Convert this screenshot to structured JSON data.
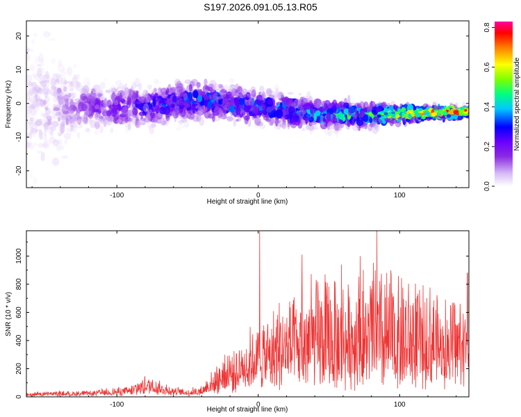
{
  "title": "S197.2026.091.05.13.R05",
  "chart_data": [
    {
      "type": "heatmap",
      "name": "spectrogram",
      "xlabel": "Height of straight line (km)",
      "ylabel": "Frequency (Hz)",
      "xlim": [
        -164,
        149
      ],
      "ylim": [
        -25,
        24.5
      ],
      "xticks": [
        -100,
        0,
        100
      ],
      "xtick_labels": [
        "-100",
        "0",
        "100"
      ],
      "yticks": [
        -20,
        -10,
        0,
        10,
        20
      ],
      "ytick_labels": [
        "-20",
        "-10",
        "0",
        "10",
        "20"
      ],
      "colorbar": {
        "label": "Normalized spectral amplitude",
        "range": [
          0.0,
          0.83
        ],
        "ticks": [
          0.0,
          0.2,
          0.4,
          0.6,
          0.8
        ],
        "tick_labels": [
          "0.0",
          "0.2",
          "0.4",
          "0.6",
          "0.8"
        ],
        "colors": [
          "#ffffff",
          "#d6b8f5",
          "#8b2be2",
          "#6a00ff",
          "#0000ff",
          "#00c8ff",
          "#00ff80",
          "#80ff00",
          "#ffff00",
          "#ff8000",
          "#ff0000",
          "#ff00a0"
        ]
      },
      "ridge": [
        {
          "x": -164,
          "center": 0,
          "spread": 14,
          "amp": 0.05
        },
        {
          "x": -120,
          "center": -1,
          "spread": 5,
          "amp": 0.15
        },
        {
          "x": -80,
          "center": -1,
          "spread": 4,
          "amp": 0.25
        },
        {
          "x": -40,
          "center": 1,
          "spread": 4,
          "amp": 0.3
        },
        {
          "x": 0,
          "center": -1,
          "spread": 3.5,
          "amp": 0.3
        },
        {
          "x": 40,
          "center": -3,
          "spread": 3,
          "amp": 0.35
        },
        {
          "x": 80,
          "center": -3.5,
          "spread": 2.5,
          "amp": 0.45
        },
        {
          "x": 110,
          "center": -3,
          "spread": 1.5,
          "amp": 0.6
        },
        {
          "x": 149,
          "center": -2.5,
          "spread": 1,
          "amp": 0.8
        }
      ]
    },
    {
      "type": "line",
      "name": "snr",
      "xlabel": "Height of straight line (km)",
      "ylabel": "SNR (10 * v/v)",
      "xlim": [
        -164,
        149
      ],
      "ylim": [
        0,
        1180
      ],
      "xticks": [
        -100,
        0,
        100
      ],
      "xtick_labels": [
        "-100",
        "0",
        "100"
      ],
      "yticks": [
        0,
        200,
        400,
        600,
        800,
        1000
      ],
      "ytick_labels": [
        "0",
        "200",
        "400",
        "600",
        "800",
        "1000"
      ],
      "color": "#ee3333",
      "envelope": [
        {
          "x": -164,
          "base": 15,
          "range": 25
        },
        {
          "x": -120,
          "base": 18,
          "range": 30
        },
        {
          "x": -90,
          "base": 30,
          "range": 60
        },
        {
          "x": -80,
          "base": 60,
          "range": 120
        },
        {
          "x": -70,
          "base": 40,
          "range": 80
        },
        {
          "x": -50,
          "base": 20,
          "range": 40
        },
        {
          "x": -40,
          "base": 30,
          "range": 60
        },
        {
          "x": -30,
          "base": 80,
          "range": 180
        },
        {
          "x": -20,
          "base": 120,
          "range": 260
        },
        {
          "x": -10,
          "base": 150,
          "range": 330
        },
        {
          "x": 0,
          "base": 180,
          "range": 420
        },
        {
          "x": 20,
          "base": 200,
          "range": 600
        },
        {
          "x": 40,
          "base": 200,
          "range": 700
        },
        {
          "x": 80,
          "base": 200,
          "range": 760
        },
        {
          "x": 120,
          "base": 220,
          "range": 650
        },
        {
          "x": 149,
          "base": 260,
          "range": 450
        }
      ],
      "peaks": [
        {
          "x": 1,
          "y": 1175
        },
        {
          "x": 84,
          "y": 1180
        },
        {
          "x": 31,
          "y": 1010
        },
        {
          "x": 72,
          "y": 1000
        },
        {
          "x": 59,
          "y": 940
        },
        {
          "x": 148,
          "y": 880
        }
      ]
    }
  ]
}
